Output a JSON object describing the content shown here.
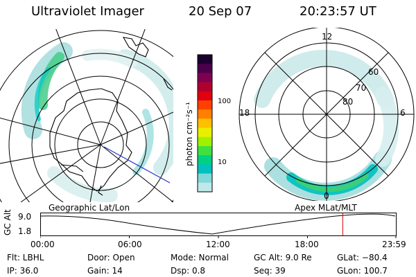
{
  "header": {
    "title": "Ultraviolet Imager",
    "date": "20 Sep 07",
    "time": "20:23:57 UT"
  },
  "colorbar": {
    "ticks": [
      "100",
      "10"
    ],
    "unit": "photon cm⁻²s⁻¹",
    "colors": [
      "#1a0030",
      "#4a004a",
      "#800050",
      "#b00030",
      "#e00010",
      "#ff4000",
      "#ff8000",
      "#ffc000",
      "#e8f000",
      "#a0f000",
      "#40e040",
      "#00d080",
      "#00c0c0",
      "#80d8d8",
      "#c0e8e8"
    ]
  },
  "mag_map": {
    "lat_labels": [
      "60",
      "70",
      "80"
    ],
    "mlt_labels": [
      "12",
      "18",
      "6",
      "0"
    ]
  },
  "orbit": {
    "left_label": "Geographic Lat/Lon",
    "right_label": "Apex MLat/MLT",
    "axis_label": "GC Alt",
    "y_ticks": [
      "9.0",
      "1.8"
    ],
    "time_ticks": [
      "00:00",
      "06:00",
      "12:00",
      "18:00",
      "23:59"
    ],
    "marker_time": "20:24",
    "marker_color": "#cc0000"
  },
  "status": {
    "row1": {
      "flt": "Flt:  LBHL",
      "door": "Door:  Open",
      "mode": "Mode:  Normal",
      "gcalt": "GC Alt:  9.0 Re",
      "glat": "GLat:  −80.4"
    },
    "row2": {
      "ip": "IP:  36.0",
      "gain": "Gain:  14",
      "dsp": "Dsp:     0.8",
      "seq": "Seq:  39",
      "glon": "GLon:  100.7"
    }
  }
}
